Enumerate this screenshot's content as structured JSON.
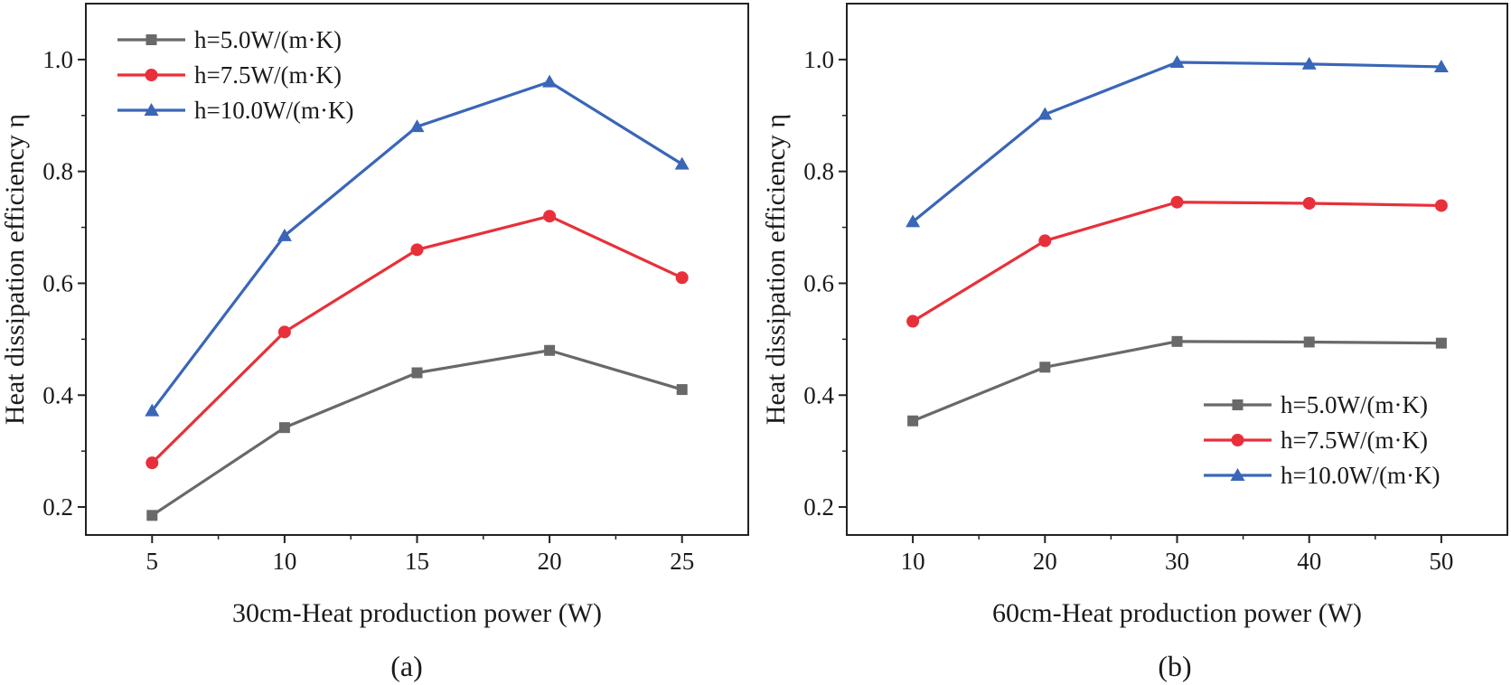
{
  "chart_data": [
    {
      "type": "line",
      "panel_label": "(a)",
      "xlabel": "30cm-Heat production power (W)",
      "ylabel": "Heat dissipation efficiency η",
      "x": [
        5,
        10,
        15,
        20,
        25
      ],
      "xticks": [
        "5",
        "10",
        "15",
        "20",
        "25"
      ],
      "yticks": [
        "0.2",
        "0.4",
        "0.6",
        "0.8",
        "1.0"
      ],
      "xlim": [
        2.5,
        27.5
      ],
      "ylim": [
        0.15,
        1.1
      ],
      "legend_position": "top-left",
      "series": [
        {
          "name": "h=5.0W/(m·K)",
          "color": "#696969",
          "marker": "square",
          "values": [
            0.185,
            0.342,
            0.44,
            0.48,
            0.41
          ]
        },
        {
          "name": "h=7.5W/(m·K)",
          "color": "#e8303a",
          "marker": "circle",
          "values": [
            0.279,
            0.513,
            0.66,
            0.72,
            0.61
          ]
        },
        {
          "name": "h=10.0W/(m·K)",
          "color": "#3a66b8",
          "marker": "triangle",
          "values": [
            0.372,
            0.685,
            0.88,
            0.96,
            0.813
          ]
        }
      ]
    },
    {
      "type": "line",
      "panel_label": "(b)",
      "xlabel": "60cm-Heat production power (W)",
      "ylabel": "Heat dissipation efficiency η",
      "x": [
        10,
        20,
        30,
        40,
        50
      ],
      "xticks": [
        "10",
        "20",
        "30",
        "40",
        "50"
      ],
      "yticks": [
        "0.2",
        "0.4",
        "0.6",
        "0.8",
        "1.0"
      ],
      "xlim": [
        5,
        55
      ],
      "ylim": [
        0.15,
        1.1
      ],
      "legend_position": "bottom-right",
      "series": [
        {
          "name": "h=5.0W/(m·K)",
          "color": "#696969",
          "marker": "square",
          "values": [
            0.354,
            0.45,
            0.496,
            0.495,
            0.493
          ]
        },
        {
          "name": "h=7.5W/(m·K)",
          "color": "#e8303a",
          "marker": "circle",
          "values": [
            0.532,
            0.676,
            0.745,
            0.743,
            0.739
          ]
        },
        {
          "name": "h=10.0W/(m·K)",
          "color": "#3a66b8",
          "marker": "triangle",
          "values": [
            0.71,
            0.902,
            0.995,
            0.992,
            0.987
          ]
        }
      ]
    }
  ]
}
